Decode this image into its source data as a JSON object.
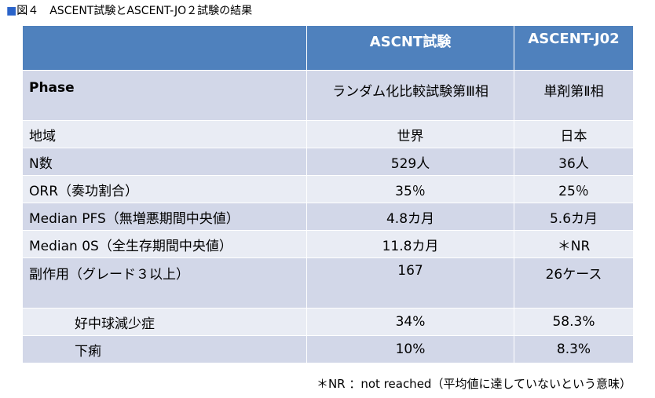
{
  "caption": {
    "marker": "■",
    "text": "図４　ASCENT試験とASCENT-JO２試験の結果"
  },
  "table": {
    "header": {
      "col1": "",
      "col2": "ASCNT試験",
      "col3": "ASCENT-J02"
    },
    "rows": [
      {
        "label": "Phase",
        "col2": "ランダム化比較試験第Ⅲ相",
        "col3": "単剤第Ⅱ相"
      },
      {
        "label": "地域",
        "col2": "世界",
        "col3": "日本"
      },
      {
        "label": "N数",
        "col2": "529人",
        "col3": "36人"
      },
      {
        "label": "ORR（奏功割合）",
        "col2": "35％",
        "col3": "25％"
      },
      {
        "label": "Median PFS（無増悪期間中央値）",
        "col2": "4.8カ月",
        "col3": "5.6カ月"
      },
      {
        "label": "Median 0S（全生存期間中央値）",
        "col2": "11.8カ月",
        "col3": "＊NR"
      },
      {
        "label": "副作用（グレード３以上）",
        "col2": "167",
        "col3": "26ケース"
      },
      {
        "label": "好中球減少症",
        "col2": "34%",
        "col3": "58.3%"
      },
      {
        "label": "下痢",
        "col2": "10%",
        "col3": "8.3%"
      }
    ]
  },
  "footnote": "＊NR ：not reached（平均値に達していないという意味）",
  "colors": {
    "header_bg": "#4f81bd",
    "row_dark": "#d2d7e8",
    "row_light": "#e9ecf4",
    "caption_marker": "#2a63c9"
  }
}
